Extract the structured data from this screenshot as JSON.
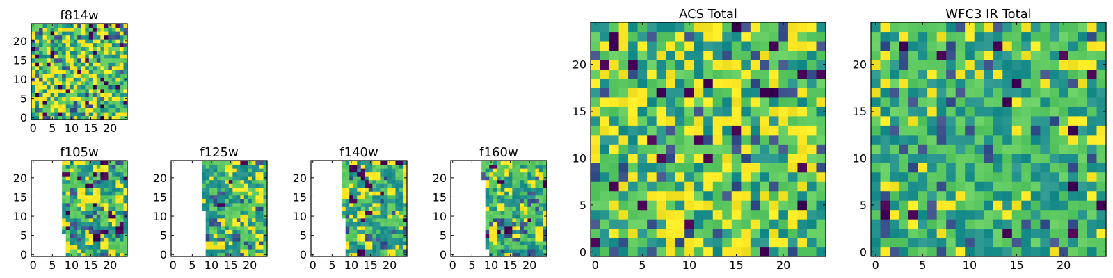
{
  "figure": {
    "colormap": [
      "#440154",
      "#3b528b",
      "#21918c",
      "#5ec962",
      "#fde725"
    ],
    "background": "#ffffff"
  },
  "chart_data": [
    {
      "type": "heatmap",
      "title": "f814w",
      "grid": false,
      "xlim": [
        0,
        24
      ],
      "ylim": [
        0,
        24
      ],
      "xticks": [
        0,
        5,
        10,
        15,
        20
      ],
      "yticks": [
        0,
        5,
        10,
        15,
        20
      ],
      "xtick_labels": [
        "0",
        "5",
        "10",
        "15",
        "20"
      ],
      "ytick_labels": [
        "0",
        "5",
        "10",
        "15",
        "20"
      ],
      "pattern": "dense",
      "seed": 11,
      "valid_region": "full"
    },
    {
      "type": "heatmap",
      "title": "f105w",
      "grid": false,
      "xlim": [
        0,
        24
      ],
      "ylim": [
        0,
        24
      ],
      "xticks": [
        0,
        5,
        10,
        15,
        20
      ],
      "yticks": [
        0,
        5,
        10,
        15,
        20
      ],
      "xtick_labels": [
        "0",
        "5",
        "10",
        "15",
        "20"
      ],
      "ytick_labels": [
        "0",
        "5",
        "10",
        "15",
        "20"
      ],
      "pattern": "blocky",
      "seed": 23,
      "valid_region": "partial",
      "valid_x_start_by_row": [
        9,
        9,
        9,
        9,
        9,
        9,
        8,
        8,
        8,
        8,
        8,
        8,
        8,
        8,
        8,
        8,
        8,
        8,
        8,
        8,
        8,
        8,
        8,
        8,
        8
      ]
    },
    {
      "type": "heatmap",
      "title": "f125w",
      "grid": false,
      "xlim": [
        0,
        24
      ],
      "ylim": [
        0,
        24
      ],
      "xticks": [
        0,
        5,
        10,
        15,
        20
      ],
      "yticks": [
        0,
        5,
        10,
        15,
        20
      ],
      "xtick_labels": [
        "0",
        "5",
        "10",
        "15",
        "20"
      ],
      "ytick_labels": [
        "0",
        "5",
        "10",
        "15",
        "20"
      ],
      "pattern": "blocky",
      "seed": 37,
      "valid_region": "partial",
      "valid_x_start_by_row": [
        9,
        9,
        9,
        9,
        9,
        9,
        9,
        9,
        9,
        9,
        9,
        9,
        8,
        8,
        8,
        8,
        8,
        8,
        8,
        8,
        8,
        8,
        8,
        8,
        8
      ]
    },
    {
      "type": "heatmap",
      "title": "f140w",
      "grid": false,
      "xlim": [
        0,
        24
      ],
      "ylim": [
        0,
        24
      ],
      "xticks": [
        0,
        5,
        10,
        15,
        20
      ],
      "yticks": [
        0,
        5,
        10,
        15,
        20
      ],
      "xtick_labels": [
        "0",
        "5",
        "10",
        "15",
        "20"
      ],
      "ytick_labels": [
        "0",
        "5",
        "10",
        "15",
        "20"
      ],
      "pattern": "blocky",
      "seed": 41,
      "valid_region": "partial",
      "valid_x_start_by_row": [
        9,
        9,
        9,
        9,
        9,
        9,
        9,
        9,
        9,
        9,
        8,
        8,
        8,
        8,
        8,
        8,
        8,
        8,
        8,
        8,
        8,
        8,
        8,
        8,
        8
      ]
    },
    {
      "type": "heatmap",
      "title": "f160w",
      "grid": false,
      "xlim": [
        0,
        24
      ],
      "ylim": [
        0,
        24
      ],
      "xticks": [
        0,
        5,
        10,
        15,
        20
      ],
      "yticks": [
        0,
        5,
        10,
        15,
        20
      ],
      "xtick_labels": [
        "0",
        "5",
        "10",
        "15",
        "20"
      ],
      "ytick_labels": [
        "0",
        "5",
        "10",
        "15",
        "20"
      ],
      "pattern": "blocky",
      "seed": 53,
      "valid_region": "partial",
      "valid_x_start_by_row": [
        10,
        10,
        9,
        9,
        9,
        9,
        9,
        9,
        9,
        9,
        9,
        9,
        9,
        9,
        9,
        9,
        9,
        9,
        9,
        9,
        8,
        8,
        8,
        8,
        8
      ]
    },
    {
      "type": "heatmap",
      "title": "ACS Total",
      "grid": false,
      "xlim": [
        0,
        24
      ],
      "ylim": [
        0,
        24
      ],
      "xticks": [
        0,
        5,
        10,
        15,
        20
      ],
      "yticks": [
        0,
        5,
        10,
        15,
        20
      ],
      "xtick_labels": [
        "0",
        "5",
        "10",
        "15",
        "20"
      ],
      "ytick_labels": [
        "0",
        "5",
        "10",
        "15",
        "20"
      ],
      "pattern": "bright",
      "seed": 67,
      "valid_region": "full"
    },
    {
      "type": "heatmap",
      "title": "WFC3 IR Total",
      "grid": false,
      "xlim": [
        0,
        24
      ],
      "ylim": [
        0,
        24
      ],
      "xticks": [
        0,
        5,
        10,
        15,
        20
      ],
      "yticks": [
        0,
        5,
        10,
        15,
        20
      ],
      "xtick_labels": [
        "0",
        "5",
        "10",
        "15",
        "20"
      ],
      "ytick_labels": [
        "0",
        "5",
        "10",
        "15",
        "20"
      ],
      "pattern": "mid",
      "seed": 79,
      "valid_region": "full"
    }
  ]
}
